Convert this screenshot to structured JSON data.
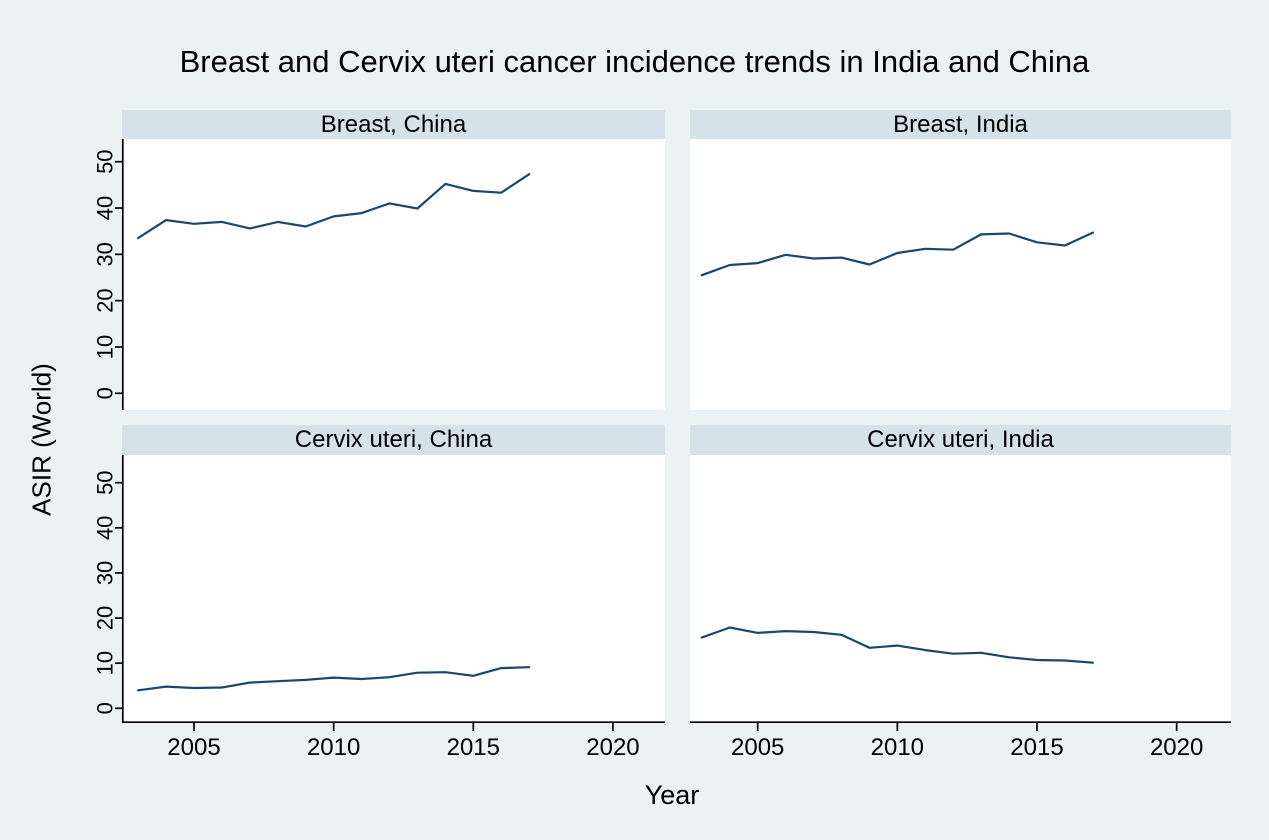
{
  "figure": {
    "title": "Breast and Cervix uteri cancer incidence trends in India and China",
    "x_axis_title": "Year",
    "y_axis_title": "ASIR (World)"
  },
  "colors": {
    "background": "#EAF2F3",
    "panel_header_background": "#D6E2EA",
    "plot_background": "#FFFFFF",
    "line_color": "#1A476F",
    "axis_color": "#000000"
  },
  "chart_data": {
    "type": "line",
    "layout": "2x2 small-multiple panels, shared axes (left column shows y axis, bottom row shows x axis)",
    "title": "Breast and Cervix uteri cancer incidence trends in India and China",
    "xlabel": "Year",
    "ylabel": "ASIR (World)",
    "grid": false,
    "legend": "none",
    "x": [
      2003,
      2004,
      2005,
      2006,
      2007,
      2008,
      2009,
      2010,
      2011,
      2012,
      2013,
      2014,
      2015,
      2016,
      2017
    ],
    "x_ticks": [
      2005,
      2010,
      2015,
      2020
    ],
    "y_ticks": [
      0,
      10,
      20,
      30,
      40,
      50
    ],
    "xlim": [
      2002.4,
      2021.9
    ],
    "ylim": [
      -3.5,
      55
    ],
    "line_color": "#1A476F",
    "panels": [
      {
        "label": "Breast, China",
        "series_key": "breast-china",
        "values": [
          33.5,
          37.4,
          36.6,
          37.0,
          35.6,
          37.0,
          36.0,
          38.2,
          38.9,
          41.0,
          39.9,
          45.2,
          43.7,
          43.3,
          47.3
        ]
      },
      {
        "label": "Breast, India",
        "series_key": "breast-india",
        "values": [
          25.5,
          27.7,
          28.1,
          29.9,
          29.1,
          29.3,
          27.8,
          30.3,
          31.2,
          31.0,
          34.3,
          34.5,
          32.6,
          31.9,
          34.7
        ]
      },
      {
        "label": "Cervix uteri, China",
        "series_key": "cervix-uteri-china",
        "values": [
          4.0,
          4.8,
          4.5,
          4.6,
          5.7,
          6.0,
          6.3,
          6.8,
          6.5,
          6.9,
          7.9,
          8.0,
          7.2,
          8.9,
          9.1
        ]
      },
      {
        "label": "Cervix uteri, India",
        "series_key": "cervix-uteri-india",
        "values": [
          15.7,
          17.9,
          16.7,
          17.1,
          16.9,
          16.3,
          13.4,
          13.9,
          12.9,
          12.1,
          12.3,
          11.3,
          10.7,
          10.6,
          10.1
        ]
      }
    ]
  }
}
